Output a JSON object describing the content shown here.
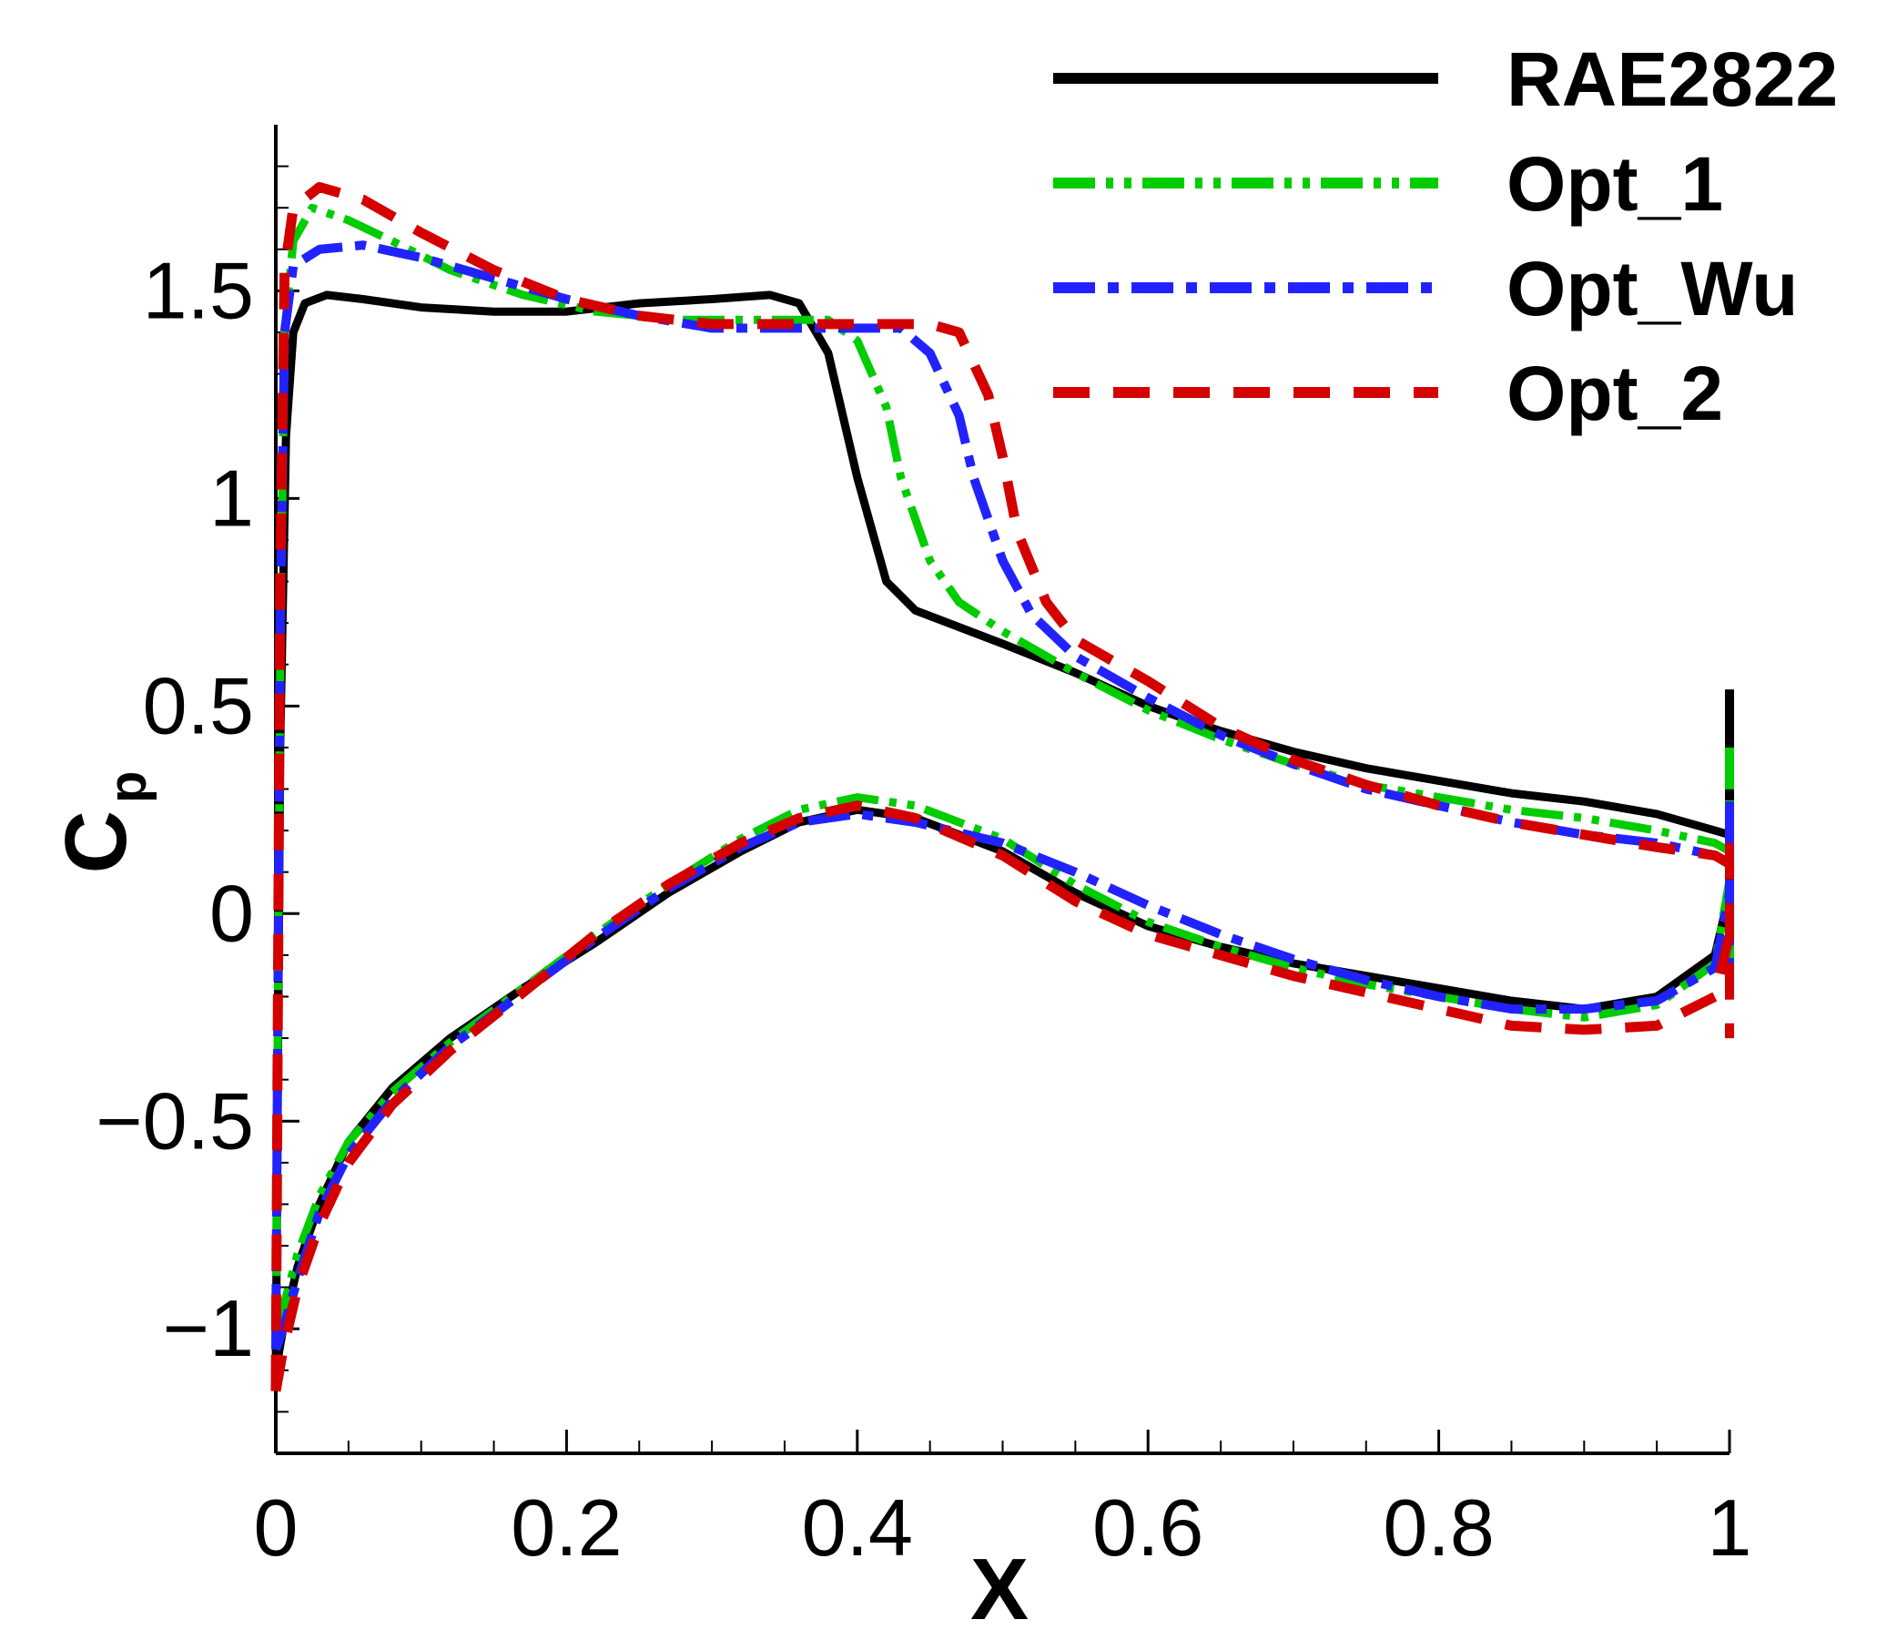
{
  "chart_data": {
    "type": "line",
    "title": "",
    "xlabel": "X",
    "ylabel_main": "C",
    "ylabel_sub": "p",
    "xlim": [
      0,
      1
    ],
    "ylim": [
      -1.3,
      1.9
    ],
    "y_inverted": true,
    "grid": false,
    "legend_position": "top-right",
    "x_ticks": [
      {
        "value": 0,
        "label": "0"
      },
      {
        "value": 0.2,
        "label": "0.2"
      },
      {
        "value": 0.4,
        "label": "0.4"
      },
      {
        "value": 0.6,
        "label": "0.6"
      },
      {
        "value": 0.8,
        "label": "0.8"
      },
      {
        "value": 1,
        "label": "1"
      }
    ],
    "y_ticks": [
      {
        "value": -1,
        "label": "−1"
      },
      {
        "value": -0.5,
        "label": "−0.5"
      },
      {
        "value": 0,
        "label": "0"
      },
      {
        "value": 0.5,
        "label": "0.5"
      },
      {
        "value": 1,
        "label": "1"
      },
      {
        "value": 1.5,
        "label": "1.5"
      }
    ],
    "series": [
      {
        "name": "RAE2822",
        "color": "#000000",
        "dash": "solid",
        "upper": [
          [
            0,
            -1.1
          ],
          [
            0.003,
            0.4
          ],
          [
            0.007,
            1.15
          ],
          [
            0.012,
            1.4
          ],
          [
            0.02,
            1.47
          ],
          [
            0.035,
            1.49
          ],
          [
            0.06,
            1.48
          ],
          [
            0.1,
            1.46
          ],
          [
            0.15,
            1.45
          ],
          [
            0.2,
            1.45
          ],
          [
            0.25,
            1.47
          ],
          [
            0.3,
            1.48
          ],
          [
            0.34,
            1.49
          ],
          [
            0.36,
            1.47
          ],
          [
            0.38,
            1.35
          ],
          [
            0.4,
            1.05
          ],
          [
            0.42,
            0.8
          ],
          [
            0.44,
            0.73
          ],
          [
            0.5,
            0.65
          ],
          [
            0.55,
            0.58
          ],
          [
            0.6,
            0.5
          ],
          [
            0.65,
            0.44
          ],
          [
            0.7,
            0.39
          ],
          [
            0.75,
            0.35
          ],
          [
            0.8,
            0.32
          ],
          [
            0.85,
            0.29
          ],
          [
            0.9,
            0.27
          ],
          [
            0.95,
            0.24
          ],
          [
            0.99,
            0.2
          ],
          [
            1.0,
            0.19
          ]
        ],
        "lower": [
          [
            0,
            -1.1
          ],
          [
            0.005,
            -1.0
          ],
          [
            0.015,
            -0.85
          ],
          [
            0.03,
            -0.7
          ],
          [
            0.05,
            -0.55
          ],
          [
            0.08,
            -0.42
          ],
          [
            0.12,
            -0.3
          ],
          [
            0.17,
            -0.18
          ],
          [
            0.22,
            -0.07
          ],
          [
            0.27,
            0.05
          ],
          [
            0.32,
            0.15
          ],
          [
            0.36,
            0.22
          ],
          [
            0.4,
            0.25
          ],
          [
            0.44,
            0.23
          ],
          [
            0.5,
            0.15
          ],
          [
            0.55,
            0.05
          ],
          [
            0.6,
            -0.03
          ],
          [
            0.65,
            -0.08
          ],
          [
            0.7,
            -0.12
          ],
          [
            0.75,
            -0.15
          ],
          [
            0.8,
            -0.18
          ],
          [
            0.85,
            -0.21
          ],
          [
            0.9,
            -0.23
          ],
          [
            0.95,
            -0.2
          ],
          [
            0.99,
            -0.1
          ],
          [
            1.0,
            0.05
          ]
        ]
      },
      {
        "name": "Opt_1",
        "color": "#00cc00",
        "dash": "dashdotdot",
        "upper": [
          [
            0,
            -1.0
          ],
          [
            0.003,
            0.6
          ],
          [
            0.006,
            1.4
          ],
          [
            0.012,
            1.62
          ],
          [
            0.025,
            1.7
          ],
          [
            0.05,
            1.67
          ],
          [
            0.08,
            1.62
          ],
          [
            0.12,
            1.55
          ],
          [
            0.17,
            1.49
          ],
          [
            0.22,
            1.45
          ],
          [
            0.28,
            1.43
          ],
          [
            0.33,
            1.43
          ],
          [
            0.38,
            1.43
          ],
          [
            0.4,
            1.38
          ],
          [
            0.42,
            1.22
          ],
          [
            0.43,
            1.05
          ],
          [
            0.45,
            0.85
          ],
          [
            0.47,
            0.75
          ],
          [
            0.5,
            0.68
          ],
          [
            0.55,
            0.58
          ],
          [
            0.6,
            0.49
          ],
          [
            0.65,
            0.42
          ],
          [
            0.7,
            0.36
          ],
          [
            0.75,
            0.31
          ],
          [
            0.8,
            0.28
          ],
          [
            0.85,
            0.25
          ],
          [
            0.9,
            0.23
          ],
          [
            0.95,
            0.2
          ],
          [
            0.99,
            0.17
          ],
          [
            1.0,
            0.15
          ]
        ],
        "lower": [
          [
            0,
            -1.0
          ],
          [
            0.005,
            -0.95
          ],
          [
            0.015,
            -0.82
          ],
          [
            0.03,
            -0.68
          ],
          [
            0.05,
            -0.55
          ],
          [
            0.08,
            -0.43
          ],
          [
            0.12,
            -0.31
          ],
          [
            0.17,
            -0.18
          ],
          [
            0.22,
            -0.05
          ],
          [
            0.27,
            0.07
          ],
          [
            0.32,
            0.18
          ],
          [
            0.36,
            0.25
          ],
          [
            0.4,
            0.28
          ],
          [
            0.44,
            0.26
          ],
          [
            0.5,
            0.18
          ],
          [
            0.55,
            0.07
          ],
          [
            0.6,
            -0.02
          ],
          [
            0.65,
            -0.08
          ],
          [
            0.7,
            -0.13
          ],
          [
            0.75,
            -0.17
          ],
          [
            0.8,
            -0.2
          ],
          [
            0.85,
            -0.23
          ],
          [
            0.9,
            -0.25
          ],
          [
            0.95,
            -0.22
          ],
          [
            0.99,
            -0.12
          ],
          [
            1.0,
            0.08
          ]
        ]
      },
      {
        "name": "Opt_Wu",
        "color": "#2222ff",
        "dash": "dashdot",
        "upper": [
          [
            0,
            -1.05
          ],
          [
            0.003,
            0.7
          ],
          [
            0.006,
            1.4
          ],
          [
            0.012,
            1.56
          ],
          [
            0.03,
            1.6
          ],
          [
            0.06,
            1.61
          ],
          [
            0.1,
            1.58
          ],
          [
            0.15,
            1.53
          ],
          [
            0.2,
            1.48
          ],
          [
            0.25,
            1.44
          ],
          [
            0.3,
            1.41
          ],
          [
            0.35,
            1.41
          ],
          [
            0.4,
            1.41
          ],
          [
            0.43,
            1.41
          ],
          [
            0.45,
            1.35
          ],
          [
            0.47,
            1.2
          ],
          [
            0.48,
            1.05
          ],
          [
            0.5,
            0.85
          ],
          [
            0.52,
            0.72
          ],
          [
            0.55,
            0.62
          ],
          [
            0.6,
            0.52
          ],
          [
            0.65,
            0.43
          ],
          [
            0.7,
            0.36
          ],
          [
            0.75,
            0.3
          ],
          [
            0.8,
            0.26
          ],
          [
            0.85,
            0.22
          ],
          [
            0.9,
            0.19
          ],
          [
            0.95,
            0.17
          ],
          [
            0.99,
            0.14
          ],
          [
            1.0,
            0.12
          ]
        ],
        "lower": [
          [
            0,
            -1.05
          ],
          [
            0.005,
            -1.0
          ],
          [
            0.015,
            -0.88
          ],
          [
            0.03,
            -0.72
          ],
          [
            0.05,
            -0.58
          ],
          [
            0.08,
            -0.45
          ],
          [
            0.12,
            -0.32
          ],
          [
            0.17,
            -0.19
          ],
          [
            0.22,
            -0.06
          ],
          [
            0.27,
            0.06
          ],
          [
            0.32,
            0.16
          ],
          [
            0.36,
            0.22
          ],
          [
            0.4,
            0.24
          ],
          [
            0.44,
            0.22
          ],
          [
            0.5,
            0.17
          ],
          [
            0.55,
            0.1
          ],
          [
            0.6,
            0.02
          ],
          [
            0.65,
            -0.05
          ],
          [
            0.7,
            -0.11
          ],
          [
            0.75,
            -0.16
          ],
          [
            0.8,
            -0.2
          ],
          [
            0.85,
            -0.23
          ],
          [
            0.9,
            -0.23
          ],
          [
            0.95,
            -0.21
          ],
          [
            0.99,
            -0.13
          ],
          [
            1.0,
            0.05
          ]
        ]
      },
      {
        "name": "Opt_2",
        "color": "#d40000",
        "dash": "dashed",
        "upper": [
          [
            0,
            -1.15
          ],
          [
            0.003,
            0.8
          ],
          [
            0.006,
            1.55
          ],
          [
            0.012,
            1.7
          ],
          [
            0.03,
            1.75
          ],
          [
            0.06,
            1.72
          ],
          [
            0.1,
            1.64
          ],
          [
            0.15,
            1.55
          ],
          [
            0.2,
            1.48
          ],
          [
            0.25,
            1.44
          ],
          [
            0.3,
            1.42
          ],
          [
            0.35,
            1.42
          ],
          [
            0.4,
            1.42
          ],
          [
            0.45,
            1.42
          ],
          [
            0.47,
            1.4
          ],
          [
            0.49,
            1.25
          ],
          [
            0.5,
            1.1
          ],
          [
            0.51,
            0.92
          ],
          [
            0.53,
            0.75
          ],
          [
            0.55,
            0.66
          ],
          [
            0.6,
            0.56
          ],
          [
            0.65,
            0.45
          ],
          [
            0.7,
            0.37
          ],
          [
            0.75,
            0.31
          ],
          [
            0.8,
            0.26
          ],
          [
            0.85,
            0.22
          ],
          [
            0.9,
            0.19
          ],
          [
            0.95,
            0.16
          ],
          [
            0.99,
            0.14
          ],
          [
            1.0,
            0.12
          ]
        ],
        "lower": [
          [
            0,
            -1.15
          ],
          [
            0.005,
            -1.05
          ],
          [
            0.015,
            -0.9
          ],
          [
            0.03,
            -0.75
          ],
          [
            0.05,
            -0.6
          ],
          [
            0.08,
            -0.46
          ],
          [
            0.12,
            -0.33
          ],
          [
            0.17,
            -0.19
          ],
          [
            0.22,
            -0.05
          ],
          [
            0.27,
            0.07
          ],
          [
            0.32,
            0.17
          ],
          [
            0.36,
            0.23
          ],
          [
            0.4,
            0.26
          ],
          [
            0.44,
            0.23
          ],
          [
            0.5,
            0.14
          ],
          [
            0.55,
            0.03
          ],
          [
            0.6,
            -0.05
          ],
          [
            0.65,
            -0.1
          ],
          [
            0.7,
            -0.15
          ],
          [
            0.75,
            -0.19
          ],
          [
            0.8,
            -0.23
          ],
          [
            0.85,
            -0.27
          ],
          [
            0.9,
            -0.28
          ],
          [
            0.95,
            -0.27
          ],
          [
            0.99,
            -0.2
          ],
          [
            1.0,
            -0.05
          ]
        ]
      }
    ]
  }
}
